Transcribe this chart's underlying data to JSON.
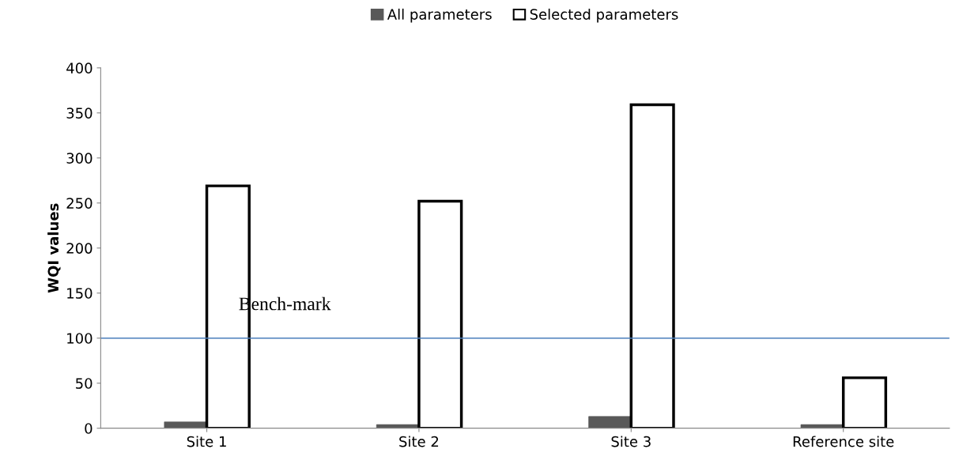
{
  "chart_data": {
    "type": "bar",
    "ylabel": "WQI values",
    "categories": [
      "Site 1",
      "Site 2",
      "Site 3",
      "Reference site"
    ],
    "series": [
      {
        "name": "All parameters",
        "color": "#595959",
        "values": [
          7,
          4,
          13,
          4
        ]
      },
      {
        "name": "Selected parameters",
        "color": "#ffffff",
        "values": [
          269,
          252,
          359,
          56
        ]
      }
    ],
    "ylim": [
      0,
      400
    ],
    "yticks": [
      0,
      50,
      100,
      150,
      200,
      250,
      300,
      350,
      400
    ],
    "ref_lines": [
      {
        "axis": "y",
        "value": 100,
        "label": "Bench-mark",
        "color": "#4a7ebb"
      }
    ],
    "grid": false,
    "legend": "top"
  }
}
